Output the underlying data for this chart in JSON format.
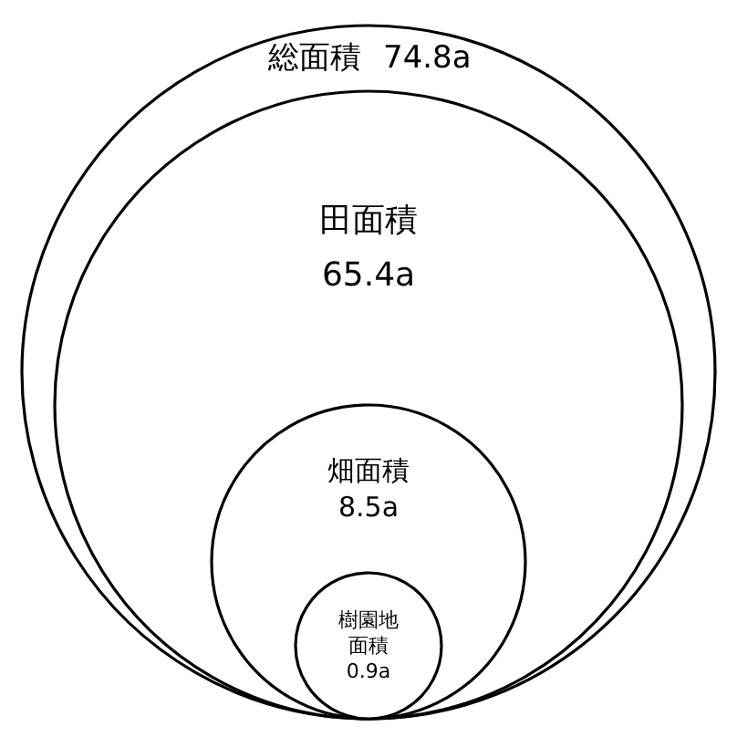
{
  "chart_data": {
    "type": "other",
    "categories": [
      "総面積",
      "田面積",
      "畑面積",
      "樹園地面積"
    ],
    "values": [
      74.8,
      65.4,
      8.5,
      0.9
    ],
    "value_labels": [
      "74.8a",
      "65.4a",
      "8.5a",
      "0.9a"
    ]
  }
}
